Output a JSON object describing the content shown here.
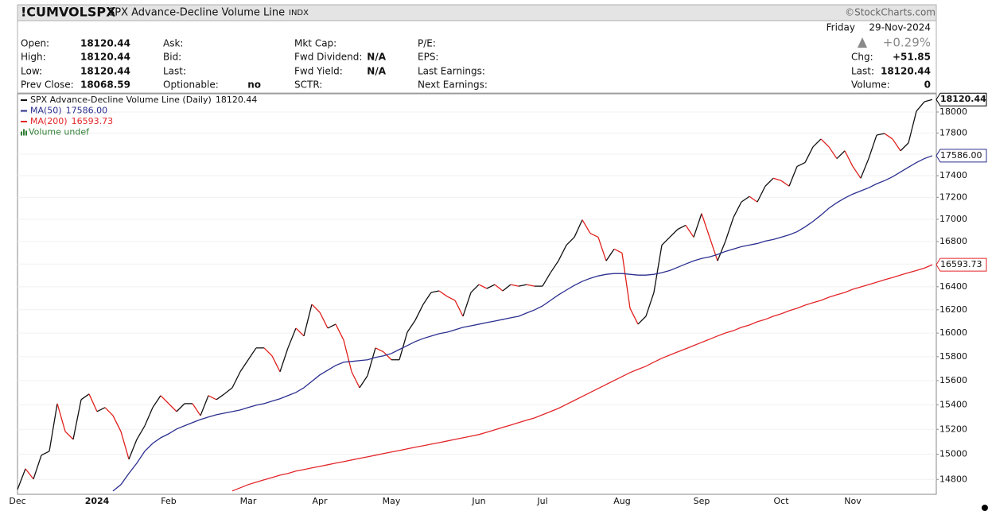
{
  "header": {
    "symbol": "!CUMVOLSPX",
    "description": "SPX Advance-Decline Volume Line",
    "exchange": "INDX",
    "source": "©StockCharts.com",
    "day": "Friday",
    "date": "29-Nov-2024",
    "change_pct": "+0.29%",
    "quote": [
      [
        {
          "label": "Open:",
          "value": "18120.44"
        },
        {
          "label": "High:",
          "value": "18120.44"
        },
        {
          "label": "Low:",
          "value": "18120.44"
        },
        {
          "label": "Prev Close:",
          "value": "18068.59"
        }
      ],
      [
        {
          "label": "Ask:"
        },
        {
          "label": "Bid:"
        },
        {
          "label": "Last:"
        },
        {
          "label": "Optionable:",
          "value": "no"
        }
      ],
      [
        {
          "label": "Mkt Cap:"
        },
        {
          "label": "Fwd Dividend:",
          "value": "N/A"
        },
        {
          "label": "Fwd Yield:",
          "value": "N/A"
        },
        {
          "label": "SCTR:"
        }
      ],
      [
        {
          "label": "P/E:"
        },
        {
          "label": "EPS:"
        },
        {
          "label": "Last Earnings:"
        },
        {
          "label": "Next Earnings:"
        }
      ]
    ],
    "summary": [
      {
        "label": "Chg:",
        "value": "+51.85"
      },
      {
        "label": "Last:",
        "value": "18120.44"
      },
      {
        "label": "Volume:",
        "value": "0"
      }
    ]
  },
  "chart_data": {
    "type": "line",
    "log": true,
    "grid": true,
    "volume_legend": "Volume undef",
    "categories": [
      "Dec",
      null,
      null,
      null,
      null,
      null,
      null,
      null,
      null,
      null,
      "2024",
      null,
      null,
      null,
      null,
      null,
      null,
      null,
      null,
      "Feb",
      null,
      null,
      null,
      null,
      null,
      null,
      null,
      null,
      null,
      "Mar",
      null,
      null,
      null,
      null,
      null,
      null,
      null,
      null,
      "Apr",
      null,
      null,
      null,
      null,
      null,
      null,
      null,
      null,
      "May",
      null,
      null,
      null,
      null,
      null,
      null,
      null,
      null,
      null,
      null,
      "Jun",
      null,
      null,
      null,
      null,
      null,
      null,
      null,
      "Jul",
      null,
      null,
      null,
      null,
      null,
      null,
      null,
      null,
      null,
      "Aug",
      null,
      null,
      null,
      null,
      null,
      null,
      null,
      null,
      null,
      "Sep",
      null,
      null,
      null,
      null,
      null,
      null,
      null,
      null,
      null,
      "Oct",
      null,
      null,
      null,
      null,
      null,
      null,
      null,
      null,
      "Nov",
      null,
      null,
      null,
      null,
      null,
      null,
      null,
      null,
      null,
      null
    ],
    "ylim": [
      14683,
      18176
    ],
    "yticks": [
      14800,
      15000,
      15200,
      15400,
      15600,
      15800,
      16000,
      16200,
      16400,
      16600,
      16800,
      17000,
      17200,
      17400,
      17600,
      17800,
      18000
    ],
    "series": [
      {
        "name": "SPX Advance-Decline Volume Line (Daily)",
        "color": "#111111",
        "down_color": "#e0201b",
        "values": [
          14721,
          14884,
          14803,
          14992,
          15024,
          15410,
          15183,
          15119,
          15443,
          15489,
          15345,
          15378,
          15312,
          15183,
          14960,
          15119,
          15229,
          15378,
          15476,
          15410,
          15345,
          15410,
          15410,
          15312,
          15476,
          15443,
          15489,
          15541,
          15674,
          15774,
          15874,
          15874,
          15807,
          15674,
          15874,
          16042,
          15975,
          16247,
          16178,
          16042,
          16076,
          15941,
          15674,
          15541,
          15641,
          15874,
          15841,
          15774,
          15774,
          16008,
          16110,
          16247,
          16350,
          16364,
          16316,
          16281,
          16144,
          16350,
          16419,
          16385,
          16419,
          16364,
          16419,
          16405,
          16419,
          16405,
          16405,
          16523,
          16628,
          16768,
          16839,
          16995,
          16874,
          16839,
          16628,
          16733,
          16698,
          16213,
          16076,
          16144,
          16350,
          16768,
          16839,
          16910,
          16946,
          16839,
          17052,
          16839,
          16628,
          16804,
          17017,
          17158,
          17208,
          17158,
          17303,
          17376,
          17354,
          17303,
          17486,
          17522,
          17669,
          17743,
          17669,
          17559,
          17632,
          17486,
          17376,
          17559,
          17780,
          17795,
          17743,
          17632,
          17706,
          18008,
          18099,
          18120.44
        ]
      },
      {
        "name": "MA(50)",
        "color": "#2b2f8f",
        "values": [
          null,
          null,
          null,
          null,
          null,
          null,
          null,
          null,
          null,
          null,
          null,
          null,
          14709,
          14759,
          14847,
          14929,
          15024,
          15087,
          15132,
          15164,
          15203,
          15229,
          15255,
          15280,
          15300,
          15319,
          15332,
          15345,
          15358,
          15378,
          15397,
          15410,
          15430,
          15450,
          15476,
          15502,
          15541,
          15594,
          15647,
          15687,
          15727,
          15754,
          15760,
          15767,
          15774,
          15794,
          15807,
          15827,
          15861,
          15894,
          15928,
          15954,
          15975,
          15995,
          16008,
          16028,
          16049,
          16062,
          16076,
          16090,
          16103,
          16117,
          16131,
          16144,
          16172,
          16199,
          16233,
          16281,
          16329,
          16371,
          16412,
          16447,
          16474,
          16495,
          16509,
          16516,
          16516,
          16509,
          16502,
          16502,
          16509,
          16523,
          16543,
          16571,
          16600,
          16628,
          16649,
          16663,
          16684,
          16712,
          16733,
          16754,
          16768,
          16782,
          16804,
          16818,
          16839,
          16860,
          16888,
          16931,
          16981,
          17038,
          17101,
          17151,
          17194,
          17230,
          17259,
          17288,
          17325,
          17354,
          17390,
          17434,
          17478,
          17522,
          17559,
          17586
        ],
        "value_labels": [
          null,
          null,
          null,
          null,
          null,
          null,
          null,
          null,
          null,
          null,
          null,
          null,
          null,
          null,
          null,
          null,
          null,
          null,
          null,
          null,
          null,
          null,
          null,
          null,
          null,
          null,
          null,
          null,
          null,
          null,
          null,
          null,
          null,
          null,
          null,
          null,
          null,
          null,
          null,
          null,
          null,
          null,
          null,
          null,
          null,
          null,
          null,
          null,
          null,
          null,
          null,
          null,
          null,
          null,
          null,
          null,
          null,
          null,
          null,
          null,
          null,
          null,
          null,
          null,
          null,
          null,
          null,
          null,
          null,
          null,
          null,
          null,
          null,
          null,
          null,
          null,
          null,
          null,
          null,
          null,
          null,
          null,
          null,
          null,
          null,
          null,
          null,
          null,
          null,
          null,
          null,
          null,
          null,
          null,
          null,
          null,
          null,
          null,
          null,
          null,
          null,
          null,
          null,
          null,
          null,
          null,
          null,
          null,
          null,
          null,
          null,
          null,
          null,
          null,
          null,
          "17586.00"
        ]
      },
      {
        "name": "MA(200)",
        "color": "#e3262a",
        "values": [
          null,
          null,
          null,
          null,
          null,
          null,
          null,
          null,
          null,
          null,
          null,
          null,
          null,
          null,
          null,
          null,
          null,
          null,
          null,
          null,
          null,
          null,
          null,
          null,
          null,
          null,
          null,
          14709,
          14734,
          14759,
          14778,
          14797,
          14815,
          14834,
          14847,
          14866,
          14878,
          14891,
          14903,
          14916,
          14929,
          14941,
          14954,
          14967,
          14979,
          14992,
          15005,
          15018,
          15030,
          15043,
          15056,
          15068,
          15081,
          15093,
          15106,
          15119,
          15132,
          15145,
          15158,
          15177,
          15196,
          15216,
          15235,
          15255,
          15274,
          15293,
          15319,
          15345,
          15371,
          15404,
          15436,
          15469,
          15502,
          15535,
          15568,
          15601,
          15634,
          15667,
          15694,
          15720,
          15754,
          15787,
          15814,
          15841,
          15867,
          15894,
          15921,
          15948,
          15975,
          16001,
          16021,
          16049,
          16069,
          16097,
          16117,
          16144,
          16165,
          16192,
          16213,
          16240,
          16261,
          16281,
          16309,
          16330,
          16350,
          16378,
          16398,
          16419,
          16440,
          16461,
          16481,
          16502,
          16523,
          16543,
          16564,
          16593.73
        ]
      }
    ]
  }
}
